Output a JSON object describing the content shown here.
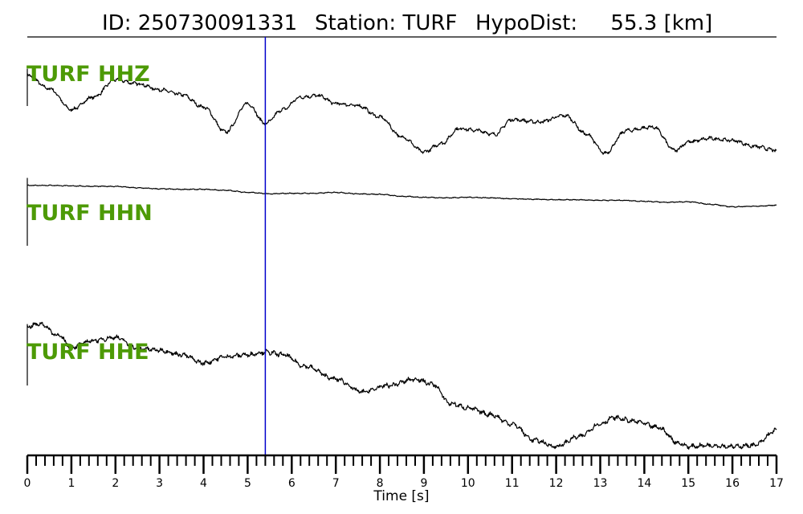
{
  "header": {
    "id_text": "ID: 250730091331",
    "station_text": "Station: TURF",
    "dist_text": "HypoDist:     55.3 [km]"
  },
  "colors": {
    "label": "#4d9a06",
    "pick_line": "#0000cc",
    "trace": "#000000"
  },
  "chart_data": {
    "type": "line",
    "title": "ID: 250730091331   Station: TURF   HypoDist:     55.3 [km]",
    "xlabel": "Time [s]",
    "xlim": [
      0,
      17
    ],
    "x_major_ticks": [
      0,
      1,
      2,
      3,
      4,
      5,
      6,
      7,
      8,
      9,
      10,
      11,
      12,
      13,
      14,
      15,
      16,
      17
    ],
    "x_minor_step": 0.2,
    "pick_time": 5.4,
    "grid": false,
    "series": [
      {
        "name": "TURF HHZ",
        "x": [
          0,
          0.5,
          1.0,
          1.5,
          2.0,
          2.5,
          3.0,
          3.5,
          4.0,
          4.5,
          5.0,
          5.4,
          5.8,
          6.2,
          6.6,
          7.0,
          7.5,
          8.0,
          8.5,
          9.0,
          9.4,
          9.8,
          10.2,
          10.6,
          11.0,
          11.6,
          12.2,
          12.7,
          13.1,
          13.6,
          14.2,
          14.7,
          15.0,
          15.5,
          16.0,
          16.5,
          17.0
        ],
        "y": [
          0.98,
          0.72,
          0.3,
          0.55,
          0.9,
          0.82,
          0.7,
          0.6,
          0.35,
          -0.15,
          0.42,
          0.02,
          0.3,
          0.55,
          0.58,
          0.42,
          0.38,
          0.15,
          -0.25,
          -0.55,
          -0.38,
          -0.08,
          -0.12,
          -0.2,
          0.1,
          0.05,
          0.18,
          -0.2,
          -0.58,
          -0.12,
          -0.05,
          -0.52,
          -0.35,
          -0.28,
          -0.32,
          -0.44,
          -0.52
        ]
      },
      {
        "name": "TURF HHN",
        "x": [
          0,
          0.5,
          1.0,
          1.5,
          2.0,
          2.5,
          3.0,
          3.5,
          4.0,
          4.5,
          5.0,
          5.5,
          6.0,
          6.5,
          7.0,
          7.5,
          8.0,
          8.5,
          9.0,
          9.5,
          10.0,
          10.5,
          11.0,
          11.5,
          12.0,
          12.5,
          13.0,
          13.5,
          14.0,
          14.5,
          15.0,
          15.5,
          16.0,
          16.5,
          17.0
        ],
        "y": [
          0.1,
          0.1,
          0.09,
          0.08,
          0.08,
          0.05,
          0.03,
          0.02,
          0.02,
          0.0,
          -0.04,
          -0.07,
          -0.06,
          -0.06,
          -0.04,
          -0.07,
          -0.08,
          -0.12,
          -0.14,
          -0.15,
          -0.14,
          -0.15,
          -0.17,
          -0.18,
          -0.19,
          -0.19,
          -0.2,
          -0.2,
          -0.22,
          -0.24,
          -0.23,
          -0.28,
          -0.33,
          -0.32,
          -0.3
        ]
      },
      {
        "name": "TURF HHE",
        "x": [
          0,
          0.3,
          0.7,
          1.0,
          1.5,
          2.0,
          2.5,
          3.0,
          3.5,
          4.0,
          4.5,
          5.0,
          5.4,
          5.8,
          6.3,
          7.0,
          7.6,
          8.2,
          8.8,
          9.2,
          9.6,
          10.0,
          10.5,
          11.0,
          11.5,
          12.0,
          12.5,
          13.0,
          13.3,
          13.8,
          14.3,
          14.8,
          15.0,
          15.5,
          16.0,
          16.5,
          17.0
        ],
        "y": [
          0.92,
          0.96,
          0.78,
          0.6,
          0.7,
          0.75,
          0.58,
          0.55,
          0.48,
          0.35,
          0.45,
          0.48,
          0.52,
          0.48,
          0.3,
          0.1,
          -0.1,
          0.0,
          0.1,
          0.02,
          -0.28,
          -0.35,
          -0.45,
          -0.6,
          -0.85,
          -0.95,
          -0.8,
          -0.6,
          -0.5,
          -0.56,
          -0.65,
          -0.9,
          -0.95,
          -0.93,
          -0.95,
          -0.93,
          -0.7
        ]
      }
    ]
  }
}
